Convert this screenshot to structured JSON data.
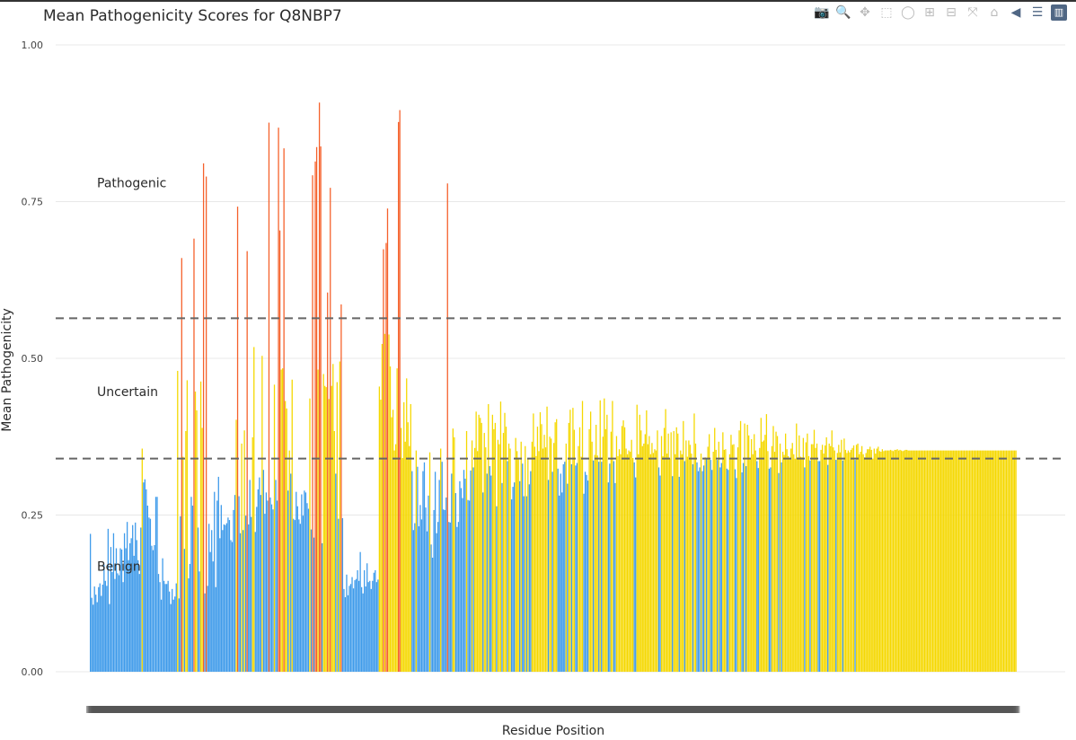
{
  "title": "Mean Pathogenicity Scores for Q8NBP7",
  "toolbar": [
    {
      "name": "camera-icon",
      "glyph": "📷"
    },
    {
      "name": "zoom-icon",
      "glyph": "🔍"
    },
    {
      "name": "pan-icon",
      "glyph": "✥"
    },
    {
      "name": "box-select-icon",
      "glyph": "⬚"
    },
    {
      "name": "lasso-select-icon",
      "glyph": "◯"
    },
    {
      "name": "zoom-in-icon",
      "glyph": "⊞"
    },
    {
      "name": "zoom-out-icon",
      "glyph": "⊟"
    },
    {
      "name": "autoscale-icon",
      "glyph": "⤧"
    },
    {
      "name": "home-icon",
      "glyph": "⌂"
    },
    {
      "name": "hover-closest-icon",
      "glyph": "◀"
    },
    {
      "name": "hover-compare-icon",
      "glyph": "☰"
    },
    {
      "name": "plotly-logo-icon",
      "glyph": "▥"
    }
  ],
  "chart_data": {
    "type": "bar",
    "xlabel": "Residue Position",
    "ylabel": "Mean Pathogenicity",
    "ylim": [
      0,
      1.0
    ],
    "yticks": [
      {
        "value": 0,
        "label": "0.00"
      },
      {
        "value": 0.25,
        "label": "0.25"
      },
      {
        "value": 0.5,
        "label": "0.50"
      },
      {
        "value": 0.75,
        "label": "0.75"
      },
      {
        "value": 1.0,
        "label": "1.00"
      }
    ],
    "grid": true,
    "thresholds": [
      0.34,
      0.564
    ],
    "threshold_style": "dashed",
    "annotations": [
      {
        "text": "Pathogenic",
        "y": 0.78
      },
      {
        "text": "Uncertain",
        "y": 0.447
      },
      {
        "text": "Benign",
        "y": 0.168
      }
    ],
    "colors": {
      "benign": "#3f9bea",
      "uncertain": "#f5d800",
      "pathogenic": "#f5612b"
    },
    "n_residues": 692,
    "values": [
      0.22,
      0.118,
      0.107,
      0.136,
      0.123,
      0.111,
      0.135,
      0.141,
      0.121,
      0.139,
      0.171,
      0.145,
      0.137,
      0.228,
      0.108,
      0.199,
      0.159,
      0.221,
      0.148,
      0.197,
      0.157,
      0.154,
      0.197,
      0.195,
      0.143,
      0.221,
      0.197,
      0.239,
      0.178,
      0.205,
      0.213,
      0.234,
      0.185,
      0.238,
      0.21,
      0.178,
      0.156,
      0.23,
      0.356,
      0.302,
      0.307,
      0.291,
      0.265,
      0.246,
      0.244,
      0.201,
      0.194,
      0.202,
      0.279,
      0.279,
      0.156,
      0.143,
      0.115,
      0.181,
      0.145,
      0.14,
      0.14,
      0.145,
      0.128,
      0.108,
      0.132,
      0.115,
      0.12,
      0.141,
      0.48,
      0.117,
      0.248,
      0.66,
      0.343,
      0.196,
      0.384,
      0.465,
      0.149,
      0.172,
      0.279,
      0.265,
      0.691,
      0.447,
      0.417,
      0.23,
      0.16,
      0.463,
      0.389,
      0.811,
      0.125,
      0.79,
      0.137,
      0.236,
      0.191,
      0.226,
      0.176,
      0.287,
      0.135,
      0.273,
      0.311,
      0.213,
      0.266,
      0.226,
      0.235,
      0.234,
      0.237,
      0.246,
      0.242,
      0.21,
      0.207,
      0.258,
      0.282,
      0.402,
      0.742,
      0.28,
      0.221,
      0.364,
      0.226,
      0.385,
      0.249,
      0.671,
      0.235,
      0.306,
      0.247,
      0.374,
      0.518,
      0.223,
      0.263,
      0.291,
      0.31,
      0.282,
      0.504,
      0.322,
      0.252,
      0.286,
      0.273,
      0.876,
      0.278,
      0.267,
      0.259,
      0.458,
      0.306,
      0.273,
      0.868,
      0.704,
      0.482,
      0.484,
      0.835,
      0.432,
      0.42,
      0.289,
      0.353,
      0.316,
      0.466,
      0.244,
      0.242,
      0.287,
      0.264,
      0.243,
      0.236,
      0.283,
      0.249,
      0.289,
      0.286,
      0.269,
      0.26,
      0.436,
      0.227,
      0.792,
      0.214,
      0.814,
      0.837,
      0.482,
      0.908,
      0.838,
      0.205,
      0.475,
      0.456,
      0.454,
      0.605,
      0.435,
      0.772,
      0.456,
      0.491,
      0.384,
      0.316,
      0.462,
      0.244,
      0.495,
      0.586,
      0.245,
      0.132,
      0.119,
      0.155,
      0.122,
      0.137,
      0.14,
      0.151,
      0.133,
      0.146,
      0.148,
      0.162,
      0.145,
      0.191,
      0.135,
      0.125,
      0.162,
      0.136,
      0.173,
      0.143,
      0.145,
      0.132,
      0.145,
      0.158,
      0.162,
      0.143,
      0.147,
      0.455,
      0.434,
      0.523,
      0.674,
      0.539,
      0.684,
      0.739,
      0.538,
      0.487,
      0.406,
      0.418,
      0.353,
      0.363,
      0.484,
      0.877,
      0.896,
      0.389,
      0.341,
      0.43,
      0.367,
      0.468,
      0.398,
      0.36,
      0.427,
      0.32,
      0.226,
      0.237,
      0.353,
      0.327,
      0.232,
      0.266,
      0.243,
      0.32,
      0.334,
      0.262,
      0.224,
      0.281,
      0.35,
      0.203,
      0.182,
      0.258,
      0.319,
      0.221,
      0.239,
      0.306,
      0.356,
      0.335,
      0.259,
      0.258,
      0.278,
      0.779,
      0.239,
      0.238,
      0.316,
      0.388,
      0.374,
      0.285,
      0.231,
      0.239,
      0.304,
      0.293,
      0.277,
      0.322,
      0.308,
      0.384,
      0.274,
      0.273,
      0.321,
      0.369,
      0.326,
      0.357,
      0.415,
      0.352,
      0.41,
      0.405,
      0.397,
      0.286,
      0.381,
      0.358,
      0.316,
      0.427,
      0.328,
      0.313,
      0.41,
      0.387,
      0.397,
      0.264,
      0.37,
      0.363,
      0.431,
      0.301,
      0.381,
      0.413,
      0.391,
      0.336,
      0.364,
      0.356,
      0.275,
      0.295,
      0.302,
      0.373,
      0.352,
      0.341,
      0.304,
      0.367,
      0.332,
      0.28,
      0.36,
      0.28,
      0.341,
      0.299,
      0.32,
      0.367,
      0.412,
      0.359,
      0.344,
      0.391,
      0.352,
      0.414,
      0.395,
      0.356,
      0.378,
      0.358,
      0.423,
      0.306,
      0.375,
      0.372,
      0.319,
      0.365,
      0.398,
      0.403,
      0.324,
      0.281,
      0.316,
      0.286,
      0.331,
      0.335,
      0.364,
      0.3,
      0.397,
      0.418,
      0.331,
      0.421,
      0.386,
      0.329,
      0.333,
      0.36,
      0.39,
      0.343,
      0.432,
      0.284,
      0.319,
      0.314,
      0.305,
      0.387,
      0.415,
      0.367,
      0.337,
      0.346,
      0.394,
      0.345,
      0.335,
      0.433,
      0.335,
      0.375,
      0.436,
      0.387,
      0.41,
      0.302,
      0.332,
      0.383,
      0.432,
      0.336,
      0.301,
      0.376,
      0.344,
      0.355,
      0.347,
      0.392,
      0.401,
      0.39,
      0.356,
      0.347,
      0.353,
      0.351,
      0.37,
      0.341,
      0.334,
      0.31,
      0.426,
      0.347,
      0.41,
      0.385,
      0.36,
      0.364,
      0.379,
      0.417,
      0.363,
      0.376,
      0.347,
      0.365,
      0.349,
      0.355,
      0.353,
      0.385,
      0.326,
      0.313,
      0.376,
      0.344,
      0.389,
      0.419,
      0.348,
      0.38,
      0.34,
      0.382,
      0.312,
      0.384,
      0.347,
      0.39,
      0.38,
      0.311,
      0.353,
      0.347,
      0.4,
      0.336,
      0.369,
      0.343,
      0.369,
      0.362,
      0.348,
      0.331,
      0.412,
      0.364,
      0.334,
      0.32,
      0.326,
      0.348,
      0.32,
      0.329,
      0.342,
      0.339,
      0.359,
      0.379,
      0.338,
      0.322,
      0.351,
      0.389,
      0.354,
      0.338,
      0.367,
      0.326,
      0.333,
      0.382,
      0.354,
      0.355,
      0.324,
      0.322,
      0.347,
      0.378,
      0.362,
      0.363,
      0.323,
      0.309,
      0.358,
      0.385,
      0.4,
      0.318,
      0.333,
      0.396,
      0.328,
      0.394,
      0.377,
      0.341,
      0.371,
      0.347,
      0.379,
      0.353,
      0.336,
      0.325,
      0.357,
      0.405,
      0.367,
      0.369,
      0.378,
      0.411,
      0.352,
      0.324,
      0.326,
      0.36,
      0.392,
      0.351,
      0.383,
      0.376,
      0.317,
      0.364,
      0.334,
      0.351,
      0.346,
      0.38,
      0.355,
      0.344,
      0.341,
      0.356,
      0.365,
      0.347,
      0.34,
      0.396,
      0.342,
      0.377,
      0.343,
      0.342,
      0.373,
      0.326,
      0.366,
      0.38,
      0.344,
      0.337,
      0.363,
      0.363,
      0.386,
      0.357,
      0.364,
      0.336,
      0.336,
      0.354,
      0.362,
      0.348,
      0.361,
      0.374,
      0.33,
      0.364,
      0.36,
      0.385,
      0.358,
      0.353,
      0.338,
      0.349,
      0.362,
      0.35,
      0.37,
      0.337,
      0.372,
      0.354,
      0.349,
      0.353,
      0.35,
      0.354,
      0.357,
      0.361,
      0.338,
      0.362,
      0.364,
      0.347,
      0.351,
      0.36,
      0.347,
      0.342,
      0.349,
      0.355,
      0.355,
      0.359,
      0.354,
      0.34,
      0.356,
      0.348,
      0.356,
      0.359,
      0.352,
      0.351,
      0.355,
      0.352,
      0.353,
      0.353,
      0.353,
      0.353,
      0.354,
      0.353,
      0.352,
      0.354,
      0.354,
      0.355,
      0.353,
      0.354,
      0.353,
      0.352,
      0.353,
      0.354,
      0.354,
      0.353,
      0.353,
      0.353,
      0.353,
      0.353,
      0.353,
      0.353,
      0.353,
      0.353,
      0.353,
      0.353,
      0.353,
      0.353,
      0.353,
      0.353,
      0.353,
      0.353,
      0.353,
      0.353,
      0.353,
      0.353,
      0.353,
      0.353,
      0.353,
      0.353,
      0.353,
      0.353,
      0.353,
      0.353,
      0.353,
      0.353,
      0.353,
      0.353,
      0.353,
      0.353,
      0.353,
      0.353,
      0.353,
      0.353,
      0.353,
      0.353,
      0.353,
      0.353,
      0.353,
      0.353,
      0.353,
      0.353,
      0.353,
      0.353,
      0.353,
      0.353,
      0.353,
      0.353,
      0.353,
      0.353,
      0.353,
      0.353,
      0.353,
      0.353,
      0.353,
      0.353,
      0.353,
      0.353,
      0.353,
      0.353,
      0.353,
      0.353,
      0.353,
      0.353,
      0.353,
      0.353,
      0.353,
      0.353,
      0.353,
      0.353,
      0.353,
      0.353,
      0.353,
      0.353,
      0.353
    ]
  }
}
